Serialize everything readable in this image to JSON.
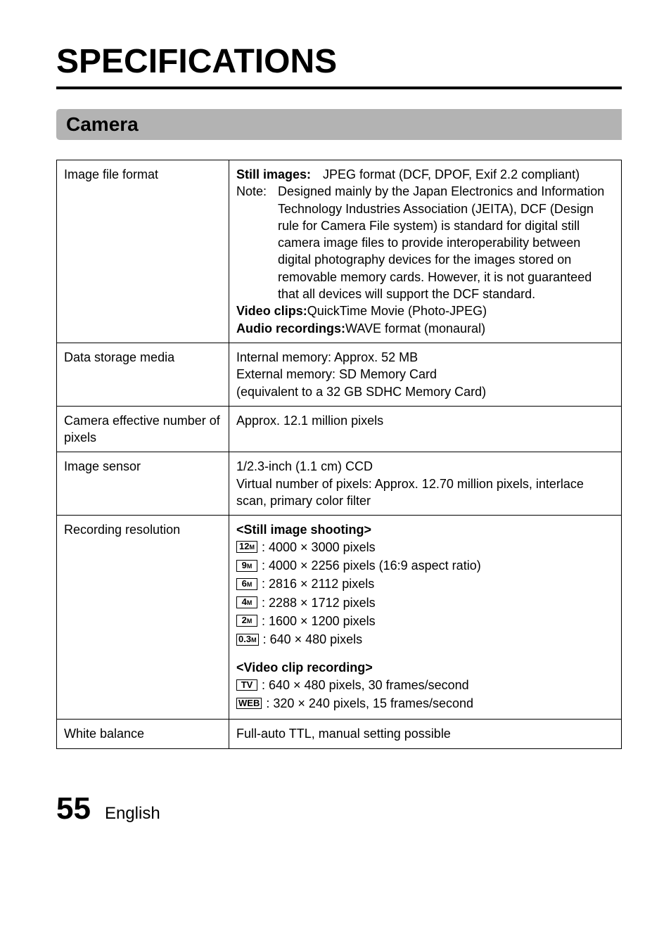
{
  "title": "SPECIFICATIONS",
  "section_header": "Camera",
  "table": {
    "rows": [
      {
        "label": "Image file format",
        "still_label": "Still images:",
        "still_value": "JPEG format (DCF, DPOF, Exif 2.2 compliant)",
        "note_prefix": "Note:",
        "note_body": "Designed mainly by the Japan Electronics and Information Technology Industries Association (JEITA), DCF (Design rule for Camera File system) is standard for digital still camera image files to provide interoperability between digital photography devices for the images stored on removable memory cards. However, it is not guaranteed that all devices will support the DCF standard.",
        "video_label": "Video clips:",
        "video_value": "QuickTime Movie (Photo-JPEG)",
        "audio_label": "Audio recordings:",
        "audio_value": "WAVE format (monaural)"
      },
      {
        "label": "Data storage media",
        "line1": "Internal memory: Approx. 52 MB",
        "line2": "External memory: SD Memory Card",
        "line3": "(equivalent to a 32 GB SDHC Memory Card)"
      },
      {
        "label": "Camera effective number of pixels",
        "value": "Approx. 12.1 million pixels"
      },
      {
        "label": "Image sensor",
        "line1": "1/2.3-inch (1.1 cm) CCD",
        "line2": "Virtual number of pixels: Approx. 12.70 million pixels, interlace scan, primary color filter"
      },
      {
        "label": "Recording resolution",
        "still_header": "<Still image shooting>",
        "still_modes": [
          {
            "icon_main": "12",
            "icon_sub": "M",
            "text": ": 4000 × 3000 pixels"
          },
          {
            "icon_main": "9",
            "icon_sub": "M",
            "text": ": 4000 × 2256 pixels (16:9 aspect ratio)"
          },
          {
            "icon_main": "6",
            "icon_sub": "M",
            "text": ": 2816 × 2112 pixels"
          },
          {
            "icon_main": "4",
            "icon_sub": "M",
            "text": ": 2288 × 1712 pixels"
          },
          {
            "icon_main": "2",
            "icon_sub": "M",
            "text": ": 1600 × 1200 pixels"
          },
          {
            "icon_main": "0.3",
            "icon_sub": "M",
            "text": ": 640 × 480 pixels"
          }
        ],
        "video_header": "<Video clip recording>",
        "video_modes": [
          {
            "icon_main": "TV",
            "icon_sub": "",
            "text": ": 640 × 480 pixels, 30 frames/second"
          },
          {
            "icon_main": "WEB",
            "icon_sub": "",
            "text": ": 320 × 240 pixels, 15 frames/second"
          }
        ]
      },
      {
        "label": "White balance",
        "value": "Full-auto TTL, manual setting possible"
      }
    ]
  },
  "footer": {
    "page": "55",
    "lang": "English"
  }
}
